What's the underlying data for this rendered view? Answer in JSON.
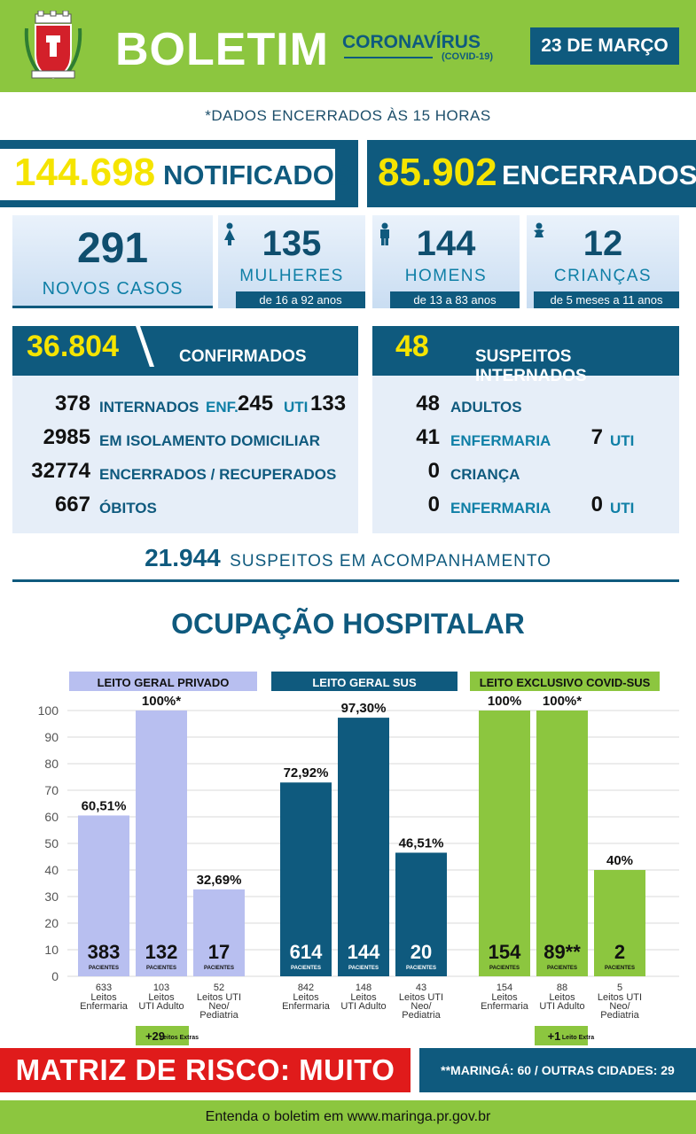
{
  "header": {
    "title": "BOLETIM",
    "corona": "CORONAVÍRUS",
    "covid": "(COVID-19)",
    "date": "23 DE MARÇO"
  },
  "closing_note": "*DADOS ENCERRADOS ÀS 15 HORAS",
  "notificados": {
    "value": "144.698",
    "label": "NOTIFICADOS"
  },
  "encerrados": {
    "value": "85.902",
    "label": "ENCERRADOS"
  },
  "novos_casos": {
    "value": "291",
    "label": "NOVOS CASOS"
  },
  "mulheres": {
    "value": "135",
    "label": "MULHERES",
    "range": "de 16 a 92 anos",
    "icon": "woman-icon"
  },
  "homens": {
    "value": "144",
    "label": "HOMENS",
    "range": "de 13 a 83 anos",
    "icon": "man-icon"
  },
  "criancas": {
    "value": "12",
    "label": "CRIANÇAS",
    "range": "de 5 meses a 11 anos",
    "icon": "baby-icon"
  },
  "confirmados": {
    "value": "36.804",
    "label": "CONFIRMADOS",
    "rows": [
      {
        "value": "378",
        "label": "INTERNADOS",
        "enf_label": "ENF.",
        "enf_value": "245",
        "uti_label": "UTI",
        "uti_value": "133"
      },
      {
        "value": "2985",
        "label": "EM ISOLAMENTO DOMICILIAR"
      },
      {
        "value": "32774",
        "label": "ENCERRADOS / RECUPERADOS"
      },
      {
        "value": "667",
        "label": "ÓBITOS"
      }
    ]
  },
  "suspeitos_internados": {
    "value": "48",
    "label": "SUSPEITOS INTERNADOS",
    "rows": [
      {
        "value": "48",
        "label": "ADULTOS"
      },
      {
        "value": "41",
        "label": "ENFERMARIA",
        "uti_value": "7",
        "uti_label": "UTI"
      },
      {
        "value": "0",
        "label": "CRIANÇA"
      },
      {
        "value": "0",
        "label": "ENFERMARIA",
        "uti_value": "0",
        "uti_label": "UTI"
      }
    ]
  },
  "acompanhamento": {
    "value": "21.944",
    "label": "SUSPEITOS EM ACOMPANHAMENTO"
  },
  "chart_data": {
    "type": "bar",
    "title": "OCUPAÇÃO HOSPITALAR",
    "ylim": [
      0,
      100
    ],
    "yticks": [
      "0",
      "10",
      "20",
      "30",
      "40",
      "50",
      "60",
      "70",
      "80",
      "90",
      "100"
    ],
    "pacientes_label": "PACIENTES",
    "groups": [
      {
        "name": "LEITO GERAL PRIVADO",
        "color": "#b8bff0",
        "header_color": "#b8bff0",
        "extra": {
          "value": "+29",
          "label": "Leitos Extras"
        },
        "bars": [
          {
            "pct": 60.51,
            "pct_label": "60,51%",
            "patients": "383",
            "beds": "633",
            "category": [
              "Leitos",
              "Enfermaria"
            ]
          },
          {
            "pct": 100,
            "pct_label": "100%*",
            "patients": "132",
            "beds": "103",
            "category": [
              "Leitos",
              "UTI Adulto"
            ]
          },
          {
            "pct": 32.69,
            "pct_label": "32,69%",
            "patients": "17",
            "beds": "52",
            "category": [
              "Leitos UTI",
              "Neo/",
              "Pediatria"
            ]
          }
        ]
      },
      {
        "name": "LEITO GERAL SUS",
        "color": "#0f5a7e",
        "header_color": "#0f5a7e",
        "bars": [
          {
            "pct": 72.92,
            "pct_label": "72,92%",
            "patients": "614",
            "beds": "842",
            "category": [
              "Leitos",
              "Enfermaria"
            ]
          },
          {
            "pct": 97.3,
            "pct_label": "97,30%",
            "patients": "144",
            "beds": "148",
            "category": [
              "Leitos",
              "UTI Adulto"
            ]
          },
          {
            "pct": 46.51,
            "pct_label": "46,51%",
            "patients": "20",
            "beds": "43",
            "category": [
              "Leitos UTI",
              "Neo/",
              "Pediatria"
            ]
          }
        ]
      },
      {
        "name": "LEITO EXCLUSIVO COVID-SUS",
        "color": "#8cc63f",
        "header_color": "#8cc63f",
        "extra": {
          "value": "+1",
          "label": "Leito Extra"
        },
        "bars": [
          {
            "pct": 100,
            "pct_label": "100%",
            "patients": "154",
            "beds": "154",
            "category": [
              "Leitos",
              "Enfermaria"
            ]
          },
          {
            "pct": 100,
            "pct_label": "100%*",
            "patients": "89**",
            "beds": "88",
            "category": [
              "Leitos",
              "UTI Adulto"
            ]
          },
          {
            "pct": 40,
            "pct_label": "40%",
            "patients": "2",
            "beds": "5",
            "category": [
              "Leitos UTI",
              "Neo/",
              "Pediatria"
            ]
          }
        ]
      }
    ]
  },
  "risk": "MATRIZ DE RISCO: MUITO ALTO",
  "origin": "**MARINGÁ: 60 / OUTRAS CIDADES: 29",
  "footer": "Entenda o boletim em www.maringa.pr.gov.br"
}
